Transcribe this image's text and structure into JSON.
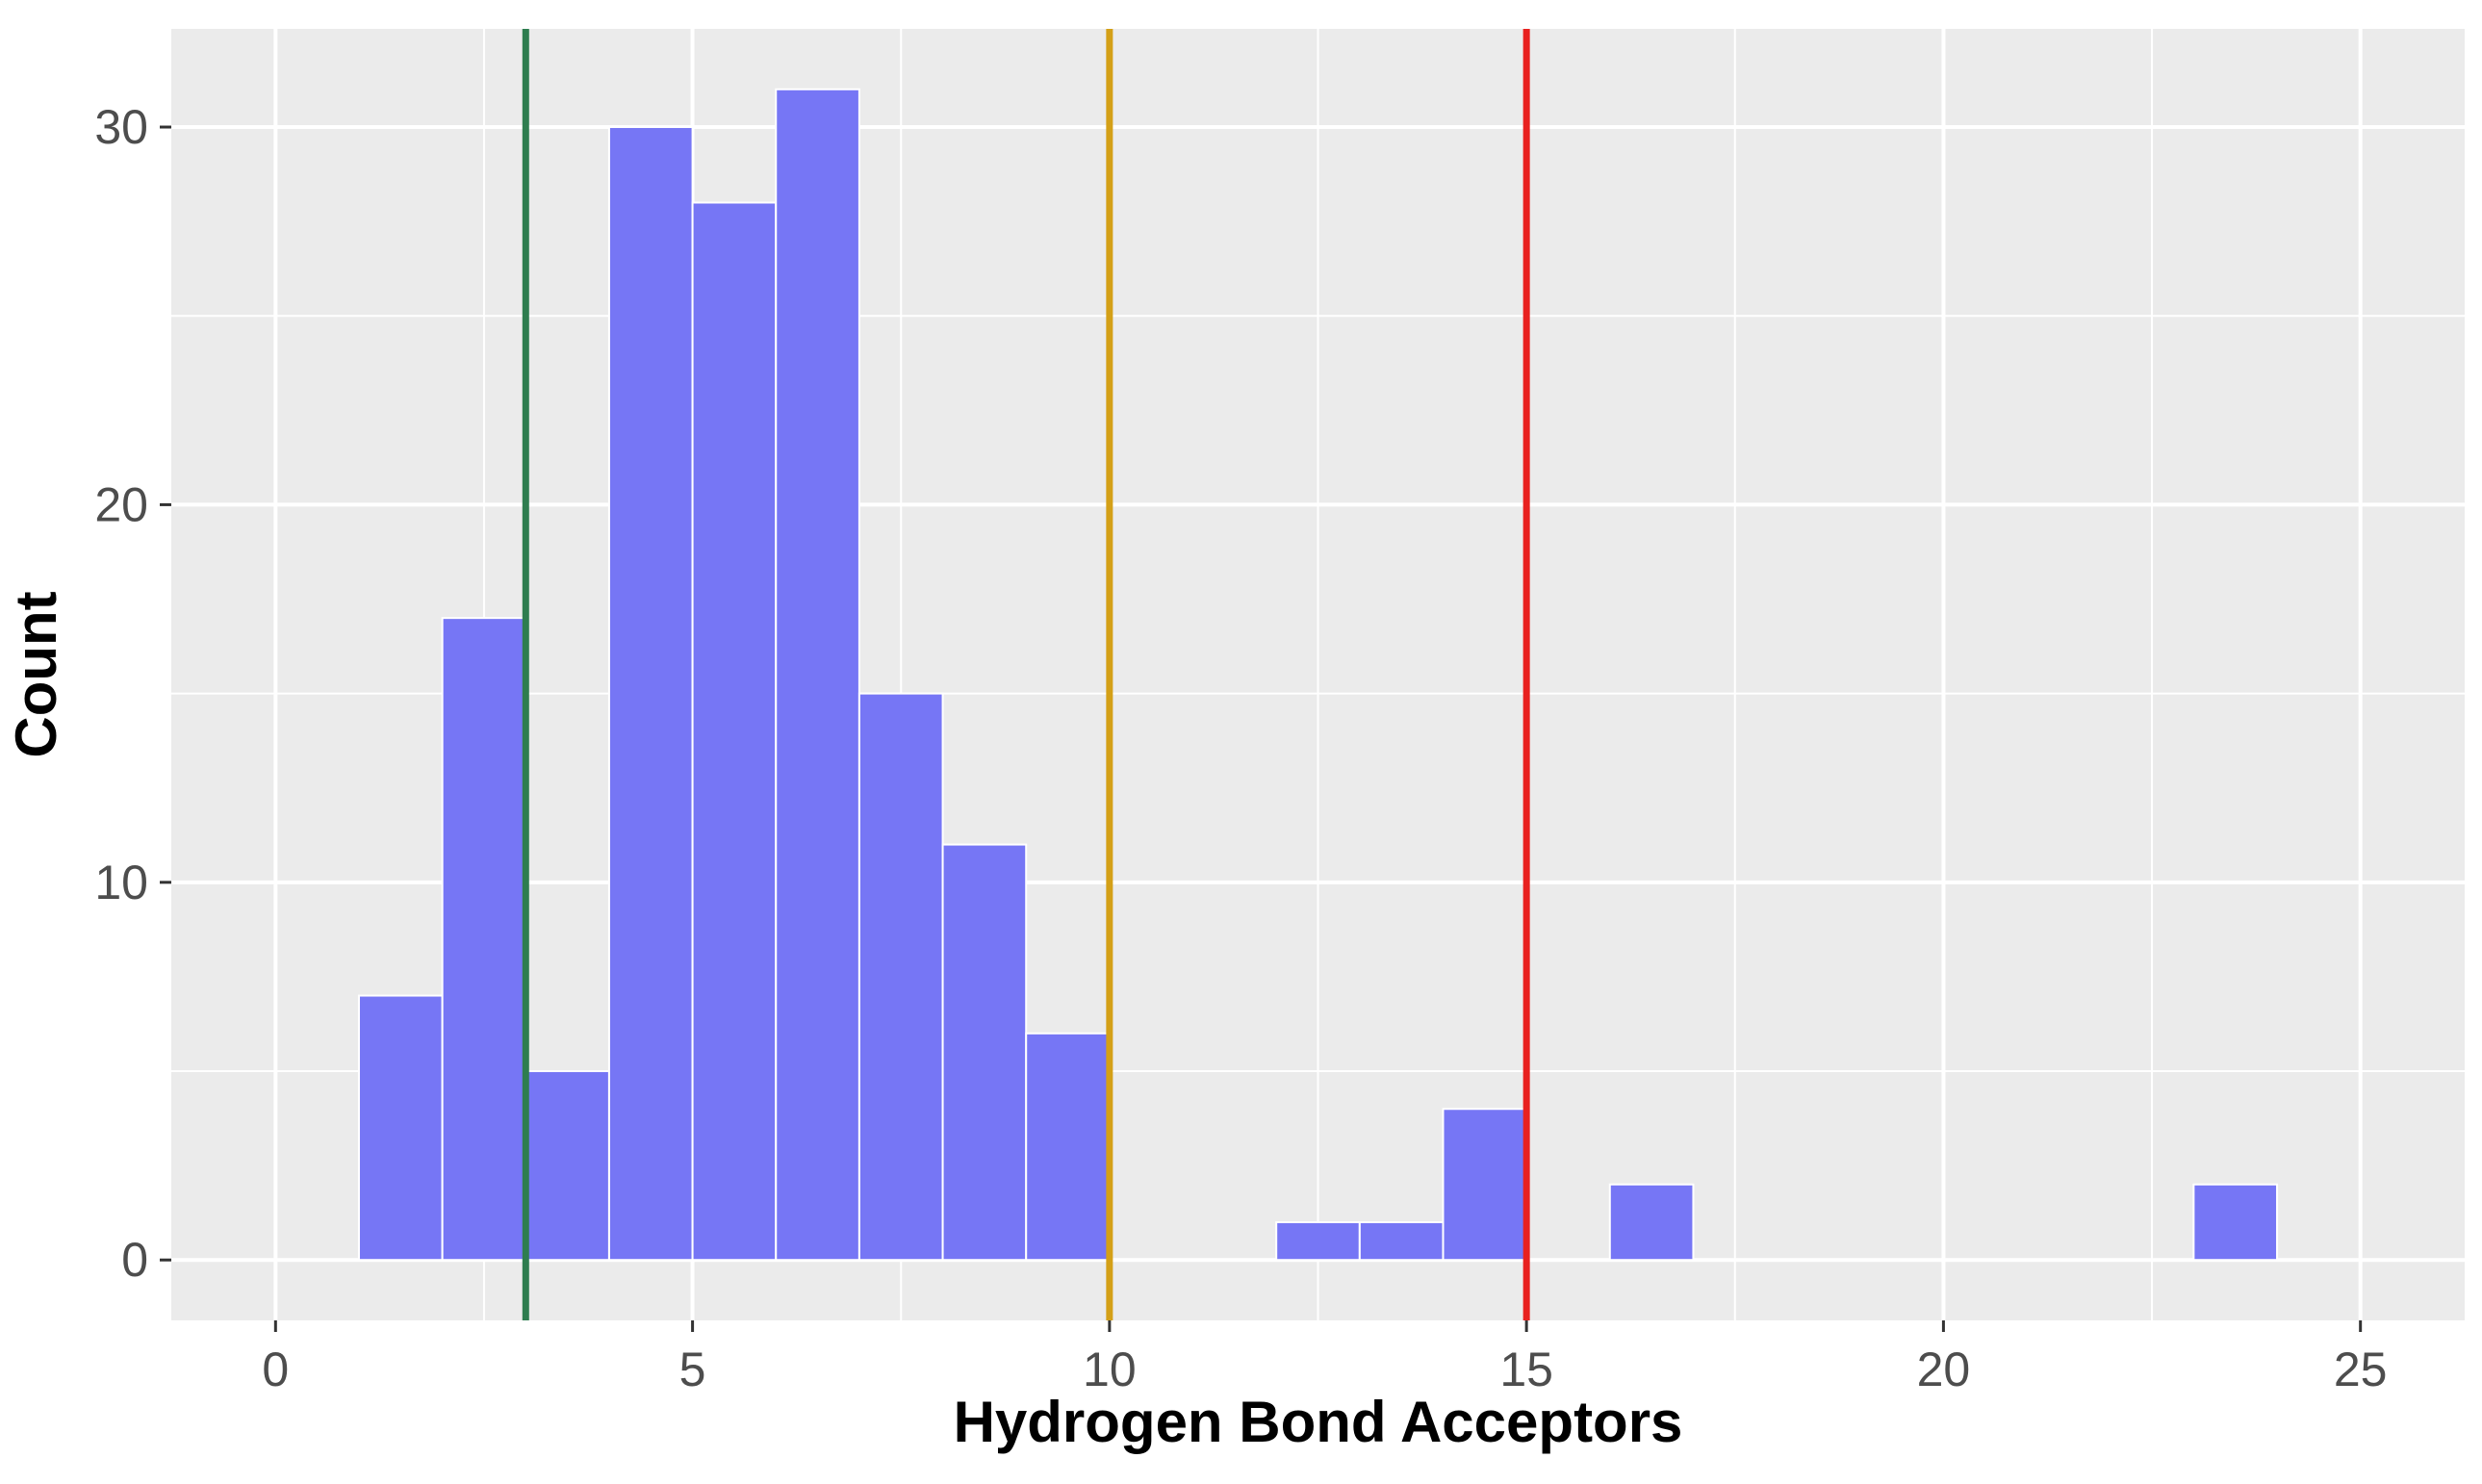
{
  "chart_data": {
    "type": "bar",
    "xlabel": "Hydrogen Bond Acceptors",
    "ylabel": "Count",
    "xlim": [
      -1.25,
      26.25
    ],
    "ylim": [
      -1.6,
      32.6
    ],
    "x_ticks": [
      0,
      5,
      10,
      15,
      20,
      25
    ],
    "y_ticks": [
      0,
      10,
      20,
      30
    ],
    "grid": true,
    "legend": "none",
    "colors": {
      "panel": "#ebebeb",
      "grid": "#ffffff",
      "bar_fill": "#7676f5",
      "bar_outline": "#ffffff",
      "tick_text": "#4d4d4d"
    },
    "bins": [
      {
        "x0": 1,
        "x1": 2,
        "count": 7
      },
      {
        "x0": 2,
        "x1": 3,
        "count": 17
      },
      {
        "x0": 3,
        "x1": 4,
        "count": 5
      },
      {
        "x0": 4,
        "x1": 5,
        "count": 30
      },
      {
        "x0": 5,
        "x1": 6,
        "count": 28
      },
      {
        "x0": 6,
        "x1": 7,
        "count": 31
      },
      {
        "x0": 7,
        "x1": 8,
        "count": 15
      },
      {
        "x0": 8,
        "x1": 9,
        "count": 11
      },
      {
        "x0": 9,
        "x1": 10,
        "count": 6
      },
      {
        "x0": 12,
        "x1": 13,
        "count": 1
      },
      {
        "x0": 13,
        "x1": 14,
        "count": 1
      },
      {
        "x0": 14,
        "x1": 15,
        "count": 4
      },
      {
        "x0": 16,
        "x1": 17,
        "count": 2
      },
      {
        "x0": 23,
        "x1": 24,
        "count": 2
      }
    ],
    "reference_lines": [
      {
        "x": 3,
        "color": "#2e7d4f"
      },
      {
        "x": 10,
        "color": "#d4a017"
      },
      {
        "x": 15,
        "color": "#e8211f"
      }
    ]
  }
}
